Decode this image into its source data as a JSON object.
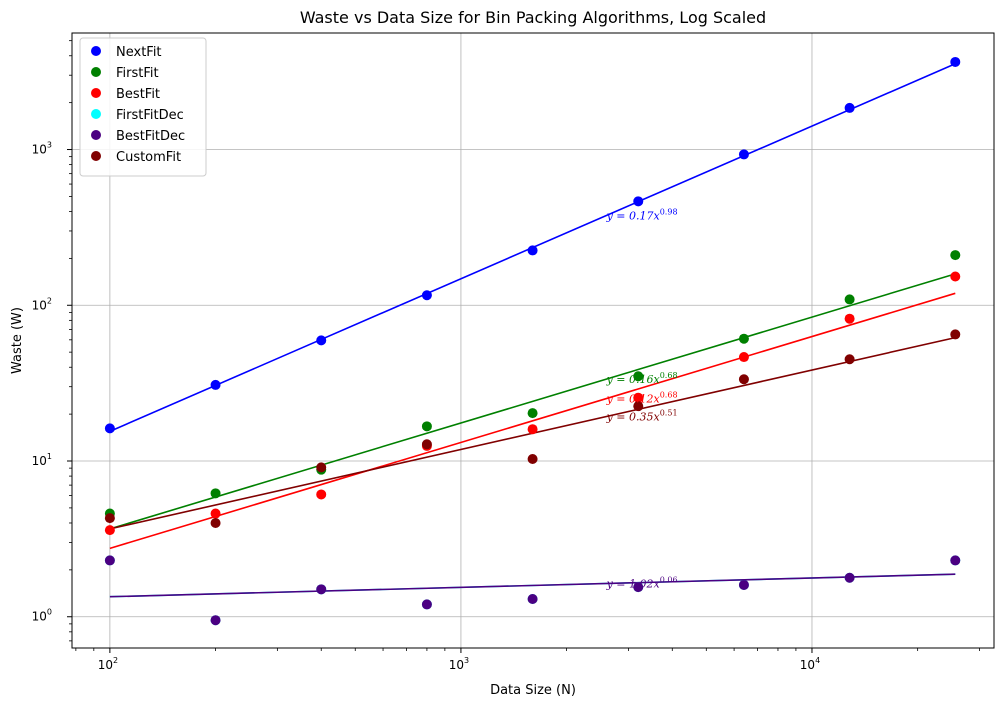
{
  "chart_data": {
    "type": "scatter",
    "title": "Waste vs Data Size for Bin Packing Algorithms, Log Scaled",
    "xlabel": "Data Size (N)",
    "ylabel": "Waste (W)",
    "xscale": "log",
    "yscale": "log",
    "xlim": [
      78,
      33000
    ],
    "ylim": [
      0.63,
      5600
    ],
    "grid": true,
    "legend_position": "top-left",
    "x_ticks": [
      {
        "value": 100,
        "base": "10",
        "exp": "2"
      },
      {
        "value": 1000,
        "base": "10",
        "exp": "3"
      },
      {
        "value": 10000,
        "base": "10",
        "exp": "4"
      }
    ],
    "y_ticks": [
      {
        "value": 1,
        "base": "10",
        "exp": "0"
      },
      {
        "value": 10,
        "base": "10",
        "exp": "1"
      },
      {
        "value": 100,
        "base": "10",
        "exp": "2"
      },
      {
        "value": 1000,
        "base": "10",
        "exp": "3"
      }
    ],
    "x": [
      100,
      200,
      400,
      800,
      1600,
      3200,
      6400,
      12800,
      25600
    ],
    "series": [
      {
        "name": "NextFit",
        "color": "#0000ff",
        "values": [
          16.2,
          30.8,
          59.5,
          116,
          225,
          465,
          930,
          1850,
          3650
        ],
        "fit": {
          "a": "0.17",
          "b": "0.98",
          "label": "y = 0.17x^0.98"
        }
      },
      {
        "name": "FirstFit",
        "color": "#008000",
        "values": [
          4.6,
          6.2,
          8.8,
          16.7,
          20.3,
          35,
          61,
          109,
          210
        ],
        "fit": {
          "a": "0.16",
          "b": "0.68",
          "label": "y = 0.16x^0.68"
        }
      },
      {
        "name": "BestFit",
        "color": "#ff0000",
        "values": [
          3.6,
          4.6,
          6.1,
          12.5,
          16,
          25.5,
          46.5,
          82,
          153
        ],
        "fit": {
          "a": "0.12",
          "b": "0.68",
          "label": "y = 0.12x^0.68"
        }
      },
      {
        "name": "FirstFitDec",
        "color": "#00ffff",
        "values": [
          2.3,
          0.95,
          1.5,
          1.2,
          1.3,
          1.55,
          1.6,
          1.78,
          2.3
        ],
        "fit": {
          "a": "1.02",
          "b": "0.06",
          "label": "y = 1.02x^0.06"
        }
      },
      {
        "name": "BestFitDec",
        "color": "#4b0082",
        "values": [
          2.3,
          0.95,
          1.5,
          1.2,
          1.3,
          1.55,
          1.6,
          1.78,
          2.3
        ],
        "fit": {
          "a": "1.02",
          "b": "0.06",
          "label": "y = 1.02x^0.06"
        }
      },
      {
        "name": "CustomFit",
        "color": "#800000",
        "values": [
          4.3,
          4.0,
          9.1,
          12.8,
          10.3,
          22.5,
          33.5,
          45,
          65
        ],
        "fit": {
          "a": "0.35",
          "b": "0.51",
          "label": "y = 0.35x^0.51"
        }
      }
    ],
    "annotations": [
      {
        "series": "NextFit",
        "a": "0.17",
        "b": "0.98"
      },
      {
        "series": "FirstFit",
        "a": "0.16",
        "b": "0.68"
      },
      {
        "series": "BestFit",
        "a": "0.12",
        "b": "0.68"
      },
      {
        "series": "CustomFit",
        "a": "0.35",
        "b": "0.51"
      },
      {
        "series": "BestFitDec",
        "a": "1.02",
        "b": "0.06"
      }
    ]
  }
}
